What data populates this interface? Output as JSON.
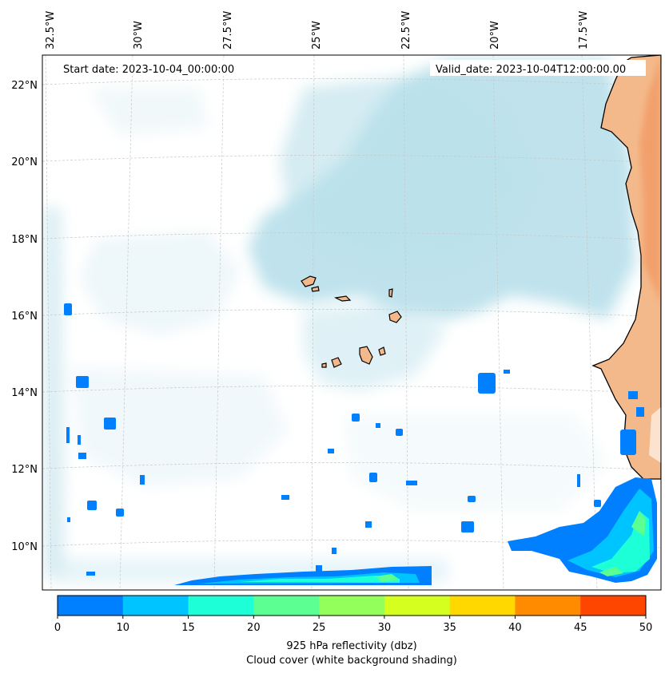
{
  "map": {
    "start_date": "Start date: 2023-10-04_00:00:00",
    "valid_date": "Valid_date: 2023-10-04T12:00:00.00",
    "lon_labels": [
      "32.5°W",
      "30°W",
      "27.5°W",
      "25°W",
      "22.5°W",
      "20°W",
      "17.5°W"
    ],
    "lat_labels": [
      "22°N",
      "20°N",
      "18°N",
      "16°N",
      "14°N",
      "12°N",
      "10°N"
    ],
    "land_color": "#f4b98a",
    "cloud_color": "#a9d8e6"
  },
  "colorbar": {
    "ticks": [
      "0",
      "10",
      "15",
      "20",
      "25",
      "30",
      "35",
      "40",
      "45",
      "50"
    ],
    "colors": [
      "#0080ff",
      "#00c4ff",
      "#1dffd6",
      "#5bff92",
      "#93ff5a",
      "#d4ff1f",
      "#ffd800",
      "#ff8c00",
      "#ff4600"
    ],
    "title_line1": "925 hPa reflectivity (dbz)",
    "title_line2": "Cloud cover (white background shading)"
  }
}
